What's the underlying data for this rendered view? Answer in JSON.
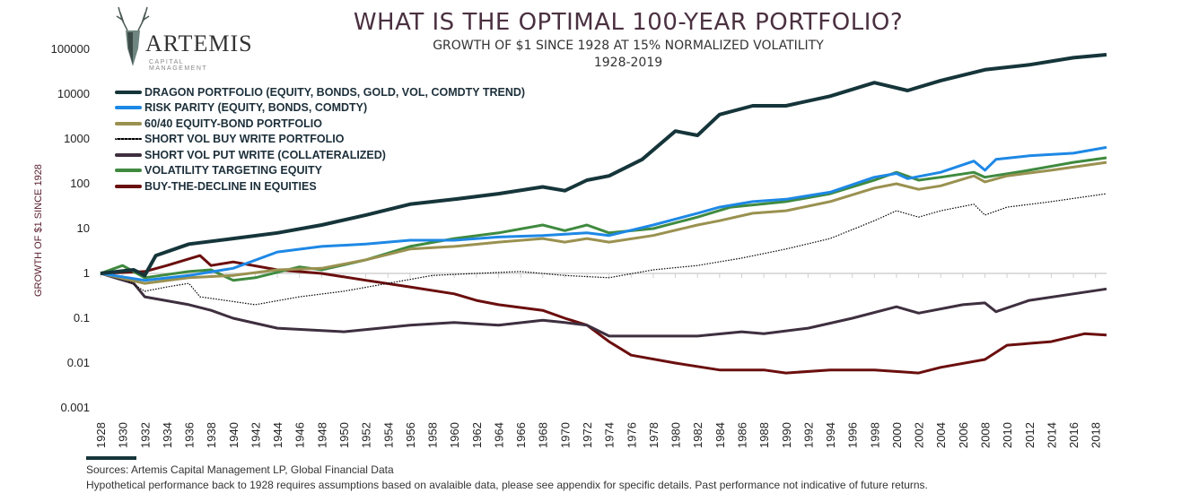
{
  "logo": {
    "name": "ARTEMIS",
    "sub": "CAPITAL MANAGEMENT"
  },
  "footer": {
    "sources": "Sources: Artemis Capital Management LP, Global Financial  Data",
    "disclaimer": "Hypothetical performance back to 1928 requires assumptions based on avalaible data, please see appendix for specific details. Past performance not indicative of future returns."
  },
  "chart_data": {
    "type": "line",
    "title": "WHAT IS THE OPTIMAL 100-YEAR PORTFOLIO?",
    "subtitle": "GROWTH OF $1 SINCE 1928 AT 15% NORMALIZED VOLATILITY",
    "subtitle2": "1928-2019",
    "xlabel": "",
    "ylabel": "GROWTH OF $1 SINCE 1928",
    "yscale": "log",
    "ylim": [
      0.001,
      100000
    ],
    "xlim": [
      1928,
      2019
    ],
    "yticks": [
      "100000",
      "10000",
      "1000",
      "100",
      "10",
      "1",
      "0.1",
      "0.01",
      "0.001"
    ],
    "xticks": [
      "1928",
      "1930",
      "1932",
      "1934",
      "1936",
      "1938",
      "1940",
      "1942",
      "1944",
      "1946",
      "1948",
      "1950",
      "1952",
      "1954",
      "1956",
      "1958",
      "1960",
      "1962",
      "1964",
      "1966",
      "1968",
      "1970",
      "1972",
      "1974",
      "1976",
      "1978",
      "1980",
      "1982",
      "1984",
      "1986",
      "1988",
      "1990",
      "1992",
      "1994",
      "1996",
      "1998",
      "2000",
      "2002",
      "2004",
      "2006",
      "2008",
      "2010",
      "2012",
      "2014",
      "2016",
      "2018"
    ],
    "grid": false,
    "legend": "top-left",
    "series": [
      {
        "name": "DRAGON PORTFOLIO (EQUITY, BONDS, GOLD, VOL, COMDTY TREND)",
        "color": "#15353a",
        "style": "solid",
        "points": [
          [
            1928,
            1
          ],
          [
            1931,
            1.2
          ],
          [
            1932,
            0.9
          ],
          [
            1933,
            2.5
          ],
          [
            1936,
            4.5
          ],
          [
            1940,
            6
          ],
          [
            1944,
            8
          ],
          [
            1948,
            12
          ],
          [
            1952,
            20
          ],
          [
            1956,
            35
          ],
          [
            1960,
            45
          ],
          [
            1964,
            60
          ],
          [
            1968,
            85
          ],
          [
            1970,
            70
          ],
          [
            1972,
            120
          ],
          [
            1974,
            150
          ],
          [
            1977,
            350
          ],
          [
            1980,
            1500
          ],
          [
            1982,
            1200
          ],
          [
            1984,
            3500
          ],
          [
            1987,
            5500
          ],
          [
            1990,
            5500
          ],
          [
            1994,
            9000
          ],
          [
            1998,
            18000
          ],
          [
            2001,
            12000
          ],
          [
            2004,
            20000
          ],
          [
            2008,
            35000
          ],
          [
            2012,
            45000
          ],
          [
            2016,
            65000
          ],
          [
            2019,
            76000
          ]
        ]
      },
      {
        "name": "RISK PARITY (EQUITY, BONDS, COMDTY)",
        "color": "#1e88e5",
        "style": "solid",
        "points": [
          [
            1928,
            1
          ],
          [
            1932,
            0.7
          ],
          [
            1936,
            0.9
          ],
          [
            1940,
            1.3
          ],
          [
            1944,
            3
          ],
          [
            1948,
            4
          ],
          [
            1952,
            4.5
          ],
          [
            1956,
            5.5
          ],
          [
            1960,
            5.5
          ],
          [
            1964,
            6.5
          ],
          [
            1968,
            7
          ],
          [
            1972,
            8
          ],
          [
            1974,
            7
          ],
          [
            1978,
            12
          ],
          [
            1982,
            22
          ],
          [
            1984,
            30
          ],
          [
            1987,
            40
          ],
          [
            1990,
            45
          ],
          [
            1994,
            65
          ],
          [
            1998,
            140
          ],
          [
            2000,
            170
          ],
          [
            2001,
            130
          ],
          [
            2004,
            180
          ],
          [
            2007,
            320
          ],
          [
            2008,
            200
          ],
          [
            2009,
            350
          ],
          [
            2012,
            420
          ],
          [
            2016,
            480
          ],
          [
            2019,
            650
          ]
        ]
      },
      {
        "name": "60/40 EQUITY-BOND PORTFOLIO",
        "color": "#9a9150",
        "style": "solid",
        "points": [
          [
            1928,
            1
          ],
          [
            1932,
            0.6
          ],
          [
            1936,
            0.8
          ],
          [
            1940,
            0.9
          ],
          [
            1944,
            1.2
          ],
          [
            1948,
            1.3
          ],
          [
            1952,
            2
          ],
          [
            1956,
            3.5
          ],
          [
            1960,
            4
          ],
          [
            1964,
            5
          ],
          [
            1968,
            6
          ],
          [
            1970,
            5
          ],
          [
            1972,
            6
          ],
          [
            1974,
            5
          ],
          [
            1978,
            7
          ],
          [
            1982,
            12
          ],
          [
            1984,
            15
          ],
          [
            1987,
            22
          ],
          [
            1990,
            25
          ],
          [
            1994,
            40
          ],
          [
            1998,
            80
          ],
          [
            2000,
            100
          ],
          [
            2002,
            75
          ],
          [
            2004,
            90
          ],
          [
            2007,
            150
          ],
          [
            2008,
            110
          ],
          [
            2010,
            150
          ],
          [
            2014,
            200
          ],
          [
            2019,
            300
          ]
        ]
      },
      {
        "name": "SHORT VOL BUY WRITE PORTFOLIO",
        "color": "#000000",
        "style": "dotted",
        "points": [
          [
            1928,
            1
          ],
          [
            1930,
            0.8
          ],
          [
            1932,
            0.4
          ],
          [
            1934,
            0.5
          ],
          [
            1936,
            0.6
          ],
          [
            1937,
            0.3
          ],
          [
            1942,
            0.2
          ],
          [
            1946,
            0.3
          ],
          [
            1950,
            0.4
          ],
          [
            1954,
            0.6
          ],
          [
            1958,
            0.9
          ],
          [
            1962,
            1
          ],
          [
            1966,
            1.1
          ],
          [
            1970,
            0.9
          ],
          [
            1974,
            0.8
          ],
          [
            1978,
            1.2
          ],
          [
            1982,
            1.5
          ],
          [
            1986,
            2.2
          ],
          [
            1990,
            3.5
          ],
          [
            1994,
            6
          ],
          [
            1998,
            15
          ],
          [
            2000,
            25
          ],
          [
            2002,
            18
          ],
          [
            2004,
            25
          ],
          [
            2007,
            35
          ],
          [
            2008,
            20
          ],
          [
            2010,
            30
          ],
          [
            2014,
            40
          ],
          [
            2019,
            60
          ]
        ]
      },
      {
        "name": "SHORT VOL PUT WRITE (COLLATERALIZED)",
        "color": "#3e2f3f",
        "style": "solid",
        "points": [
          [
            1928,
            1
          ],
          [
            1931,
            0.6
          ],
          [
            1932,
            0.3
          ],
          [
            1936,
            0.2
          ],
          [
            1938,
            0.15
          ],
          [
            1940,
            0.1
          ],
          [
            1944,
            0.06
          ],
          [
            1950,
            0.05
          ],
          [
            1956,
            0.07
          ],
          [
            1960,
            0.08
          ],
          [
            1964,
            0.07
          ],
          [
            1968,
            0.09
          ],
          [
            1970,
            0.08
          ],
          [
            1972,
            0.07
          ],
          [
            1974,
            0.04
          ],
          [
            1978,
            0.04
          ],
          [
            1982,
            0.04
          ],
          [
            1986,
            0.05
          ],
          [
            1988,
            0.045
          ],
          [
            1992,
            0.06
          ],
          [
            1996,
            0.1
          ],
          [
            2000,
            0.18
          ],
          [
            2002,
            0.13
          ],
          [
            2006,
            0.2
          ],
          [
            2008,
            0.22
          ],
          [
            2009,
            0.14
          ],
          [
            2012,
            0.25
          ],
          [
            2016,
            0.35
          ],
          [
            2019,
            0.45
          ]
        ]
      },
      {
        "name": "VOLATILITY TARGETING EQUITY",
        "color": "#3f8a3f",
        "style": "solid",
        "points": [
          [
            1928,
            1
          ],
          [
            1930,
            1.5
          ],
          [
            1932,
            0.8
          ],
          [
            1936,
            1.1
          ],
          [
            1938,
            1.2
          ],
          [
            1940,
            0.7
          ],
          [
            1942,
            0.8
          ],
          [
            1946,
            1.4
          ],
          [
            1948,
            1.2
          ],
          [
            1952,
            2
          ],
          [
            1956,
            4
          ],
          [
            1960,
            6
          ],
          [
            1964,
            8
          ],
          [
            1968,
            12
          ],
          [
            1970,
            9
          ],
          [
            1972,
            12
          ],
          [
            1974,
            8
          ],
          [
            1978,
            10
          ],
          [
            1982,
            18
          ],
          [
            1985,
            30
          ],
          [
            1990,
            40
          ],
          [
            1994,
            60
          ],
          [
            1998,
            120
          ],
          [
            2000,
            180
          ],
          [
            2002,
            120
          ],
          [
            2004,
            140
          ],
          [
            2007,
            180
          ],
          [
            2008,
            140
          ],
          [
            2012,
            200
          ],
          [
            2016,
            300
          ],
          [
            2019,
            380
          ]
        ]
      },
      {
        "name": "BUY-THE-DECLINE IN EQUITIES",
        "color": "#6b0e0e",
        "style": "solid",
        "points": [
          [
            1928,
            1
          ],
          [
            1932,
            1.1
          ],
          [
            1934,
            1.5
          ],
          [
            1937,
            2.5
          ],
          [
            1938,
            1.5
          ],
          [
            1940,
            1.8
          ],
          [
            1944,
            1.2
          ],
          [
            1948,
            1
          ],
          [
            1952,
            0.7
          ],
          [
            1956,
            0.5
          ],
          [
            1960,
            0.35
          ],
          [
            1962,
            0.25
          ],
          [
            1964,
            0.2
          ],
          [
            1968,
            0.15
          ],
          [
            1970,
            0.1
          ],
          [
            1972,
            0.07
          ],
          [
            1974,
            0.03
          ],
          [
            1976,
            0.015
          ],
          [
            1980,
            0.01
          ],
          [
            1984,
            0.007
          ],
          [
            1988,
            0.007
          ],
          [
            1990,
            0.006
          ],
          [
            1994,
            0.007
          ],
          [
            1998,
            0.007
          ],
          [
            2002,
            0.006
          ],
          [
            2004,
            0.008
          ],
          [
            2008,
            0.012
          ],
          [
            2010,
            0.025
          ],
          [
            2014,
            0.03
          ],
          [
            2017,
            0.045
          ],
          [
            2019,
            0.042
          ]
        ]
      }
    ]
  }
}
